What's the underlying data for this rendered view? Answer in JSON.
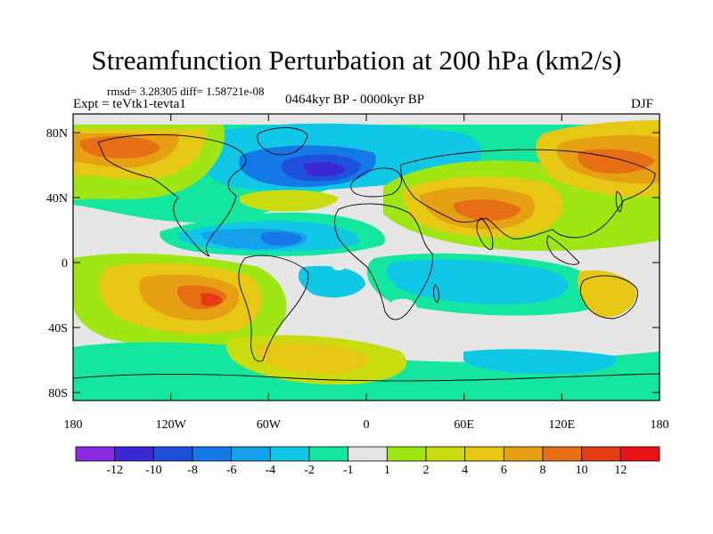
{
  "title": "Streamfunction Perturbation at 200 hPa (km2/s)",
  "stats": "rmsd= 3.28305  diff= 1.58721e-08",
  "experiment": "Expt = teVtk1-tevta1",
  "period": "0464kyr BP - 0000kyr BP",
  "season": "DJF",
  "map": {
    "lat_labels": [
      "80N",
      "40N",
      "0",
      "40S",
      "80S"
    ],
    "lon_labels": [
      "180",
      "120W",
      "60W",
      "0",
      "60E",
      "120E",
      "180"
    ]
  },
  "colorbar": {
    "labels": [
      "-12",
      "-10",
      "-8",
      "-6",
      "-4",
      "-2",
      "-1",
      "1",
      "2",
      "4",
      "6",
      "8",
      "10",
      "12"
    ],
    "colors": [
      "#8a2be2",
      "#3c28d2",
      "#1e50dc",
      "#1478e6",
      "#14a0eb",
      "#10c8e6",
      "#14e6a0",
      "#e6e6e6",
      "#a0e614",
      "#c8dc10",
      "#e6c814",
      "#e6a014",
      "#e66e14",
      "#e63c14",
      "#e61414"
    ]
  },
  "palette": {
    "neutral": "#e6e6e6",
    "blue_dark": "#1e50dc",
    "blue": "#1478e6",
    "cyan": "#14a0eb",
    "aqua": "#10c8e6",
    "teal": "#14e6a0",
    "lime": "#a0e614",
    "yellow": "#c8dc10",
    "gold": "#e6c814",
    "orange": "#e6a014",
    "orange_dark": "#e66e14",
    "red_orange": "#e63c14"
  }
}
